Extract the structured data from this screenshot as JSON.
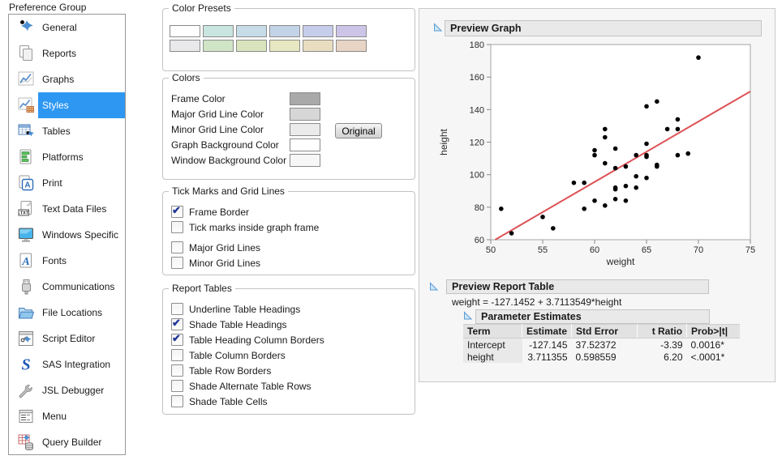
{
  "sidebar": {
    "title": "Preference Group",
    "selected": "Styles",
    "items": [
      {
        "label": "General",
        "icon": "jmp-logo-icon"
      },
      {
        "label": "Reports",
        "icon": "documents-icon"
      },
      {
        "label": "Graphs",
        "icon": "line-chart-icon"
      },
      {
        "label": "Styles",
        "icon": "chart-style-icon"
      },
      {
        "label": "Tables",
        "icon": "spreadsheet-icon"
      },
      {
        "label": "Platforms",
        "icon": "bar-chart-page-icon"
      },
      {
        "label": "Print",
        "icon": "print-page-icon"
      },
      {
        "label": "Text Data Files",
        "icon": "txt-file-icon"
      },
      {
        "label": "Windows Specific",
        "icon": "monitor-icon"
      },
      {
        "label": "Fonts",
        "icon": "font-page-icon"
      },
      {
        "label": "Communications",
        "icon": "usb-plug-icon"
      },
      {
        "label": "File Locations",
        "icon": "folder-icon"
      },
      {
        "label": "Script Editor",
        "icon": "script-window-icon"
      },
      {
        "label": "SAS Integration",
        "icon": "sas-icon"
      },
      {
        "label": "JSL Debugger",
        "icon": "wrench-icon"
      },
      {
        "label": "Menu",
        "icon": "menu-list-icon"
      },
      {
        "label": "Query Builder",
        "icon": "query-db-icon"
      }
    ]
  },
  "color_presets": {
    "title": "Color Presets",
    "swatches": [
      "#ffffff",
      "#c9e5df",
      "#c6dde8",
      "#c4d4e8",
      "#c6cdeb",
      "#cdc5e8",
      "#e9e9eb",
      "#cfe5c5",
      "#d9e4bd",
      "#e7e7c1",
      "#e9ddc0",
      "#e8d4c4"
    ]
  },
  "colors": {
    "title": "Colors",
    "original_button": "Original",
    "rows": [
      {
        "label": "Frame Color",
        "color": "#a9a9a9"
      },
      {
        "label": "Major Grid Line Color",
        "color": "#d7d7d7"
      },
      {
        "label": "Minor Grid Line Color",
        "color": "#ebebeb"
      },
      {
        "label": "Graph Background Color",
        "color": "#ffffff"
      },
      {
        "label": "Window Background Color",
        "color": "#f7f7f7"
      }
    ]
  },
  "tick_marks": {
    "title": "Tick Marks and Grid Lines",
    "options": [
      {
        "label": "Frame Border",
        "checked": true,
        "gap_before": false
      },
      {
        "label": "Tick marks inside graph frame",
        "checked": false,
        "gap_before": false
      },
      {
        "label": "Major Grid Lines",
        "checked": false,
        "gap_before": true
      },
      {
        "label": "Minor Grid Lines",
        "checked": false,
        "gap_before": false
      }
    ]
  },
  "report_tables": {
    "title": "Report Tables",
    "options": [
      {
        "label": "Underline Table Headings",
        "checked": false,
        "gap_before": false
      },
      {
        "label": "Shade Table Headings",
        "checked": true,
        "gap_before": false
      },
      {
        "label": "Table Heading Column Borders",
        "checked": true,
        "gap_before": false
      },
      {
        "label": "Table Column Borders",
        "checked": false,
        "gap_before": false
      },
      {
        "label": "Table Row Borders",
        "checked": false,
        "gap_before": false
      },
      {
        "label": "Shade Alternate Table Rows",
        "checked": false,
        "gap_before": false
      },
      {
        "label": "Shade Table Cells",
        "checked": false,
        "gap_before": false
      }
    ]
  },
  "preview": {
    "graph_title": "Preview Graph",
    "report_table_title": "Preview Report Table",
    "equation": "weight = -127.1452 + 3.7113549*height",
    "parameter_estimates": {
      "title": "Parameter Estimates",
      "columns": [
        "Term",
        "Estimate",
        "Std Error",
        "t Ratio",
        "Prob>|t|"
      ],
      "col_align": [
        "left",
        "right",
        "left",
        "right",
        "left"
      ],
      "rows": [
        [
          "Intercept",
          "-127.145",
          "37.52372",
          "-3.39",
          "0.0016*"
        ],
        [
          "height",
          "3.711355",
          "0.598559",
          "6.20",
          "<.0001*"
        ]
      ]
    }
  },
  "chart_data": {
    "type": "scatter",
    "title": "",
    "xlabel": "weight",
    "ylabel": "height",
    "xlim": [
      50,
      75
    ],
    "ylim": [
      60,
      180
    ],
    "xticks": [
      50,
      55,
      60,
      65,
      70,
      75
    ],
    "yticks": [
      60,
      80,
      100,
      120,
      140,
      160,
      180
    ],
    "grid": false,
    "legend": false,
    "point_color": "#000000",
    "frame_color": "#a6a6a6",
    "fit_line": {
      "intercept": -127.1452,
      "slope": 3.7113549,
      "color": "#dd5257"
    },
    "points": [
      [
        51,
        79
      ],
      [
        52,
        64
      ],
      [
        55,
        74
      ],
      [
        56,
        67
      ],
      [
        58,
        95
      ],
      [
        59,
        95
      ],
      [
        59,
        79
      ],
      [
        60,
        115
      ],
      [
        60,
        112
      ],
      [
        60,
        84
      ],
      [
        61,
        128
      ],
      [
        61,
        123
      ],
      [
        61,
        107
      ],
      [
        61,
        81
      ],
      [
        62,
        116
      ],
      [
        62,
        104
      ],
      [
        62,
        92
      ],
      [
        62,
        91
      ],
      [
        62,
        85
      ],
      [
        63,
        105
      ],
      [
        63,
        93
      ],
      [
        63,
        84
      ],
      [
        64,
        112
      ],
      [
        64,
        99
      ],
      [
        64,
        92
      ],
      [
        65,
        142
      ],
      [
        65,
        119
      ],
      [
        65,
        112
      ],
      [
        65,
        111
      ],
      [
        65,
        98
      ],
      [
        66,
        145
      ],
      [
        66,
        106
      ],
      [
        66,
        105
      ],
      [
        67,
        128
      ],
      [
        68,
        134
      ],
      [
        68,
        128
      ],
      [
        68,
        112
      ],
      [
        69,
        113
      ],
      [
        70,
        172
      ]
    ]
  }
}
